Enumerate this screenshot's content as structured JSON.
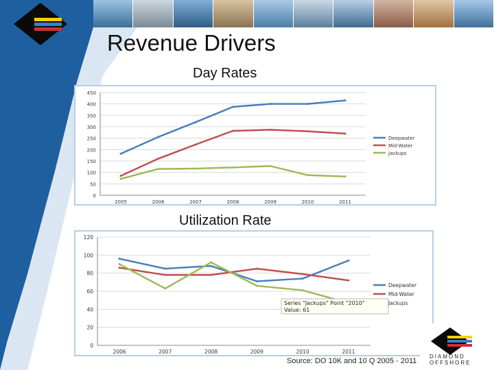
{
  "slide": {
    "title": "Revenue Drivers",
    "source": "Source: DO 10K and 10 Q 2005 - 2011",
    "logo_text": "DIAMOND OFFSHORE",
    "colors": {
      "sidebar_blue": "#1e5fa0",
      "sidebar_light": "#bcd3ea",
      "deepwater": "#4a7ebb",
      "midwater": "#c0504d",
      "jackups": "#9bbb59"
    }
  },
  "chart_data": [
    {
      "type": "line",
      "title": "Day Rates",
      "x": [
        "2005",
        "2006",
        "2007",
        "2008",
        "2009",
        "2010",
        "2011"
      ],
      "ylim": [
        0,
        450
      ],
      "yticks": [
        0,
        50,
        100,
        150,
        200,
        250,
        300,
        350,
        400,
        450
      ],
      "series": [
        {
          "name": "Deepwater",
          "color": "#4a7ebb",
          "values": [
            182,
            255,
            320,
            387,
            400,
            400,
            415
          ]
        },
        {
          "name": "Mid-Water",
          "color": "#c0504d",
          "values": [
            85,
            160,
            222,
            282,
            287,
            280,
            270
          ]
        },
        {
          "name": "Jackups",
          "color": "#9bbb59",
          "values": [
            72,
            115,
            117,
            122,
            128,
            88,
            82
          ]
        }
      ],
      "legend": "right"
    },
    {
      "type": "line",
      "title": "Utilization Rate",
      "x": [
        "2006",
        "2007",
        "2008",
        "2009",
        "2010",
        "2011"
      ],
      "ylim": [
        0,
        120
      ],
      "yticks": [
        0,
        20,
        40,
        60,
        80,
        100,
        120
      ],
      "series": [
        {
          "name": "Deepwater",
          "color": "#4a7ebb",
          "values": [
            96,
            85,
            88,
            71,
            74,
            94
          ]
        },
        {
          "name": "Mid-Water",
          "color": "#c0504d",
          "values": [
            86,
            78,
            78,
            85,
            79,
            72
          ]
        },
        {
          "name": "Jackups",
          "color": "#9bbb59",
          "values": [
            90,
            63,
            92,
            66,
            61,
            47
          ]
        }
      ],
      "legend": "right",
      "tooltip": {
        "line1": "Series \"Jackups\" Point \"2010\"",
        "line2": "Value: 61"
      }
    }
  ]
}
